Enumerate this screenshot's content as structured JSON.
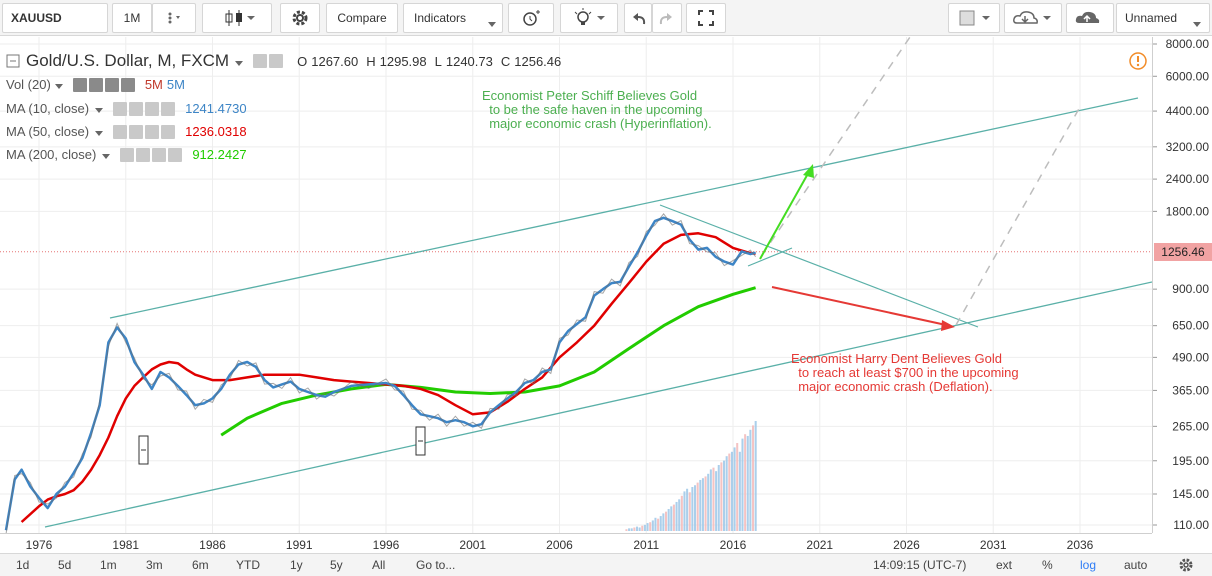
{
  "toolbar": {
    "symbol": "XAUUSD",
    "interval": "1M",
    "compare_label": "Compare",
    "indicators_label": "Indicators",
    "layout_name": "Unnamed"
  },
  "legend": {
    "title": "Gold/U.S. Dollar, M, FXCM",
    "ohlc": {
      "o_label": "O",
      "o": "1267.60",
      "h_label": "H",
      "h": "1295.98",
      "l_label": "L",
      "l": "1240.73",
      "c_label": "C",
      "c": "1256.46"
    },
    "vol": {
      "label": "Vol (20)",
      "v1": "5M",
      "v2": "5M"
    },
    "ma10": {
      "label": "MA (10, close)",
      "value": "1241.4730",
      "color": "#3d85c6"
    },
    "ma50": {
      "label": "MA (50, close)",
      "value": "1236.0318",
      "color": "#e00000"
    },
    "ma200": {
      "label": "MA (200, close)",
      "value": "912.2427",
      "color": "#22cc00"
    }
  },
  "annotations": {
    "schiff": "Economist Peter Schiff Believes Gold\n  to be the safe haven in the upcoming\n  major economic crash (Hyperinflation).",
    "dent": "Economist Harry Dent Believes Gold\n  to reach at least $700 in the upcoming\n  major economic crash (Deflation).",
    "schiff_color": "#4caf50",
    "dent_color": "#e53935"
  },
  "last_price_label": "1256.46",
  "chart_data": {
    "type": "line",
    "title": "Gold/U.S. Dollar, M, FXCM",
    "y_scale": "log",
    "y_ticks": [
      110,
      145,
      195,
      265,
      365,
      490,
      650,
      900,
      1256.46,
      1800,
      2400,
      3200,
      4400,
      6000,
      8000
    ],
    "y_tick_labels": [
      "110.00",
      "145.00",
      "195.00",
      "265.00",
      "365.00",
      "490.00",
      "650.00",
      "900.00",
      "1256.46",
      "1800.00",
      "2400.00",
      "3200.00",
      "4400.00",
      "6000.00",
      "8000.00"
    ],
    "x_ticks": [
      1976,
      1981,
      1986,
      1991,
      1996,
      2001,
      2006,
      2011,
      2016,
      2021,
      2026,
      2031,
      2036
    ],
    "x_range": [
      1974,
      2040
    ],
    "series": [
      {
        "name": "MA (10, close)",
        "color": "#3d85c6",
        "x": [
          1974.1,
          1974.6,
          1975.0,
          1975.5,
          1976.0,
          1976.5,
          1977.0,
          1977.5,
          1978.0,
          1978.5,
          1979.0,
          1979.5,
          1980.0,
          1980.5,
          1981.0,
          1981.5,
          1982.0,
          1982.5,
          1983.0,
          1983.5,
          1984.0,
          1984.5,
          1985.0,
          1985.5,
          1986.0,
          1986.5,
          1987.0,
          1987.5,
          1988.0,
          1988.5,
          1989.0,
          1989.5,
          1990.0,
          1990.5,
          1991.0,
          1991.5,
          1992.0,
          1992.5,
          1993.0,
          1994.0,
          1995.0,
          1996.0,
          1996.5,
          1997.0,
          1997.5,
          1998.0,
          1998.5,
          1999.0,
          1999.5,
          2000.0,
          2000.5,
          2001.0,
          2001.5,
          2002.0,
          2002.5,
          2003.0,
          2003.5,
          2004.0,
          2004.5,
          2005.0,
          2005.5,
          2006.0,
          2006.5,
          2007.0,
          2007.5,
          2008.0,
          2008.5,
          2009.0,
          2009.5,
          2010.0,
          2010.5,
          2011.0,
          2011.5,
          2012.0,
          2012.5,
          2013.0,
          2013.5,
          2014.0,
          2014.5,
          2015.0,
          2015.5,
          2016.0,
          2016.5,
          2017.0,
          2017.3
        ],
        "values": [
          105,
          165,
          180,
          155,
          140,
          128,
          145,
          155,
          175,
          200,
          250,
          320,
          560,
          640,
          580,
          470,
          420,
          370,
          430,
          410,
          380,
          350,
          320,
          325,
          340,
          370,
          420,
          460,
          470,
          450,
          400,
          375,
          385,
          395,
          370,
          360,
          350,
          345,
          360,
          380,
          385,
          390,
          380,
          350,
          320,
          295,
          290,
          285,
          275,
          280,
          275,
          265,
          270,
          300,
          320,
          340,
          360,
          390,
          400,
          430,
          440,
          560,
          620,
          660,
          700,
          850,
          900,
          950,
          960,
          1100,
          1250,
          1450,
          1650,
          1700,
          1650,
          1600,
          1400,
          1280,
          1300,
          1200,
          1150,
          1120,
          1260,
          1230,
          1245
        ]
      },
      {
        "name": "MA (50, close)",
        "color": "#e00000",
        "x": [
          1975.0,
          1976.0,
          1976.5,
          1977.0,
          1977.5,
          1978.0,
          1978.5,
          1979.0,
          1979.5,
          1980.0,
          1980.5,
          1981.0,
          1981.5,
          1982.0,
          1982.5,
          1983.0,
          1983.5,
          1984.0,
          1984.5,
          1985.0,
          1986.0,
          1987.0,
          1988.0,
          1989.0,
          1990.0,
          1991.0,
          1992.0,
          1993.0,
          1994.0,
          1995.0,
          1996.0,
          1997.0,
          1998.0,
          1999.0,
          2000.0,
          2001.0,
          2002.0,
          2003.0,
          2004.0,
          2005.0,
          2006.0,
          2007.0,
          2008.0,
          2009.0,
          2010.0,
          2011.0,
          2012.0,
          2013.0,
          2014.0,
          2015.0,
          2016.0,
          2017.0,
          2017.3
        ],
        "values": [
          113,
          130,
          138,
          142,
          145,
          150,
          162,
          180,
          205,
          240,
          290,
          340,
          380,
          410,
          440,
          460,
          470,
          465,
          440,
          420,
          400,
          400,
          410,
          420,
          420,
          420,
          410,
          400,
          395,
          390,
          385,
          380,
          370,
          350,
          320,
          295,
          300,
          330,
          370,
          410,
          490,
          560,
          650,
          790,
          950,
          1150,
          1350,
          1460,
          1480,
          1430,
          1300,
          1240,
          1236
        ]
      },
      {
        "name": "MA (200, close)",
        "color": "#22cc00",
        "x": [
          1986.5,
          1988.0,
          1990.0,
          1992.0,
          1994.0,
          1996.0,
          1998.0,
          2000.0,
          2002.0,
          2004.0,
          2006.0,
          2008.0,
          2010.0,
          2012.0,
          2014.0,
          2016.0,
          2017.3
        ],
        "values": [
          245,
          285,
          325,
          350,
          370,
          385,
          375,
          360,
          355,
          360,
          380,
          430,
          530,
          650,
          770,
          860,
          912
        ]
      }
    ],
    "volume_series": {
      "x_start": 2009.8,
      "x_end": 2017.4,
      "values": [
        2,
        3,
        3,
        4,
        5,
        4,
        6,
        7,
        9,
        10,
        12,
        15,
        14,
        17,
        20,
        22,
        25,
        28,
        30,
        33,
        36,
        40,
        45,
        48,
        44,
        50,
        52,
        55,
        58,
        60,
        62,
        65,
        70,
        72,
        68,
        75,
        78,
        80,
        85,
        88,
        90,
        95,
        100,
        90,
        105,
        110,
        108,
        115,
        120,
        125
      ]
    }
  }
}
